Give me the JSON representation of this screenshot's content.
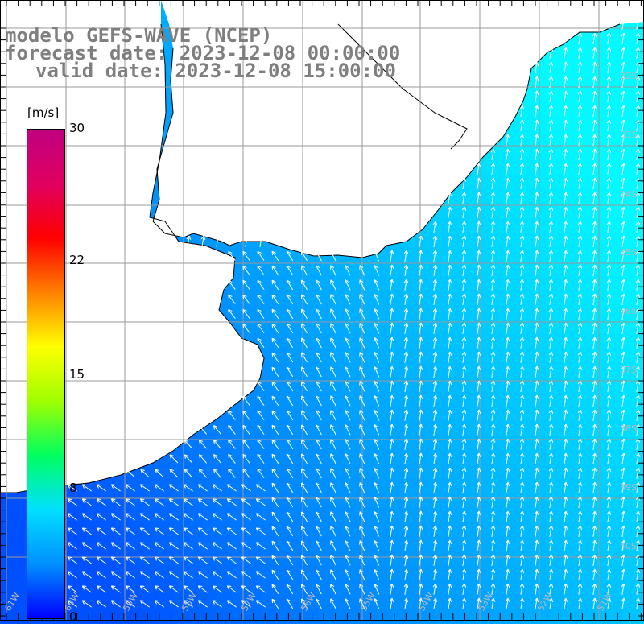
{
  "header": {
    "model_line": "modelo GEFS-WAVE (NCEP)",
    "forecast_line": "forecast date: 2023-12-08 00:00:00",
    "valid_line": "valid date: 2023-12-08 15:00:00"
  },
  "colorbar": {
    "unit": "[m/s]",
    "min": 0,
    "max": 30,
    "tick_labels": [
      "30",
      "22",
      "15",
      "8",
      "0"
    ],
    "tick_values": [
      30,
      22,
      15,
      8,
      0
    ],
    "palette": [
      "#0000ff",
      "#0090ff",
      "#00e0ff",
      "#00ff60",
      "#a0ff00",
      "#ffff00",
      "#ff8000",
      "#ff0000",
      "#e00060",
      "#c00080"
    ]
  },
  "map": {
    "variable": "wind speed",
    "land_color": "#ffffff",
    "coast_color": "#000000",
    "grid_color": "#9a9a9a",
    "arrow_color": "#ffffff",
    "grid": true,
    "lon_labels": [
      "61W",
      "60W",
      "59W",
      "58W",
      "57W",
      "56W",
      "55W",
      "54W",
      "53W",
      "52W",
      "51W"
    ],
    "lat_labels": [
      "32S",
      "33S",
      "34S",
      "35S",
      "36S",
      "37S",
      "38S",
      "39S",
      "40S"
    ]
  }
}
